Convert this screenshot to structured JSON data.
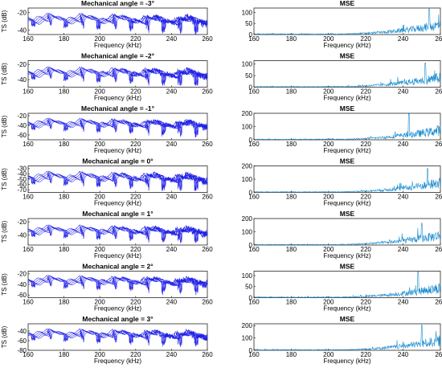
{
  "figure": {
    "left_column_series_color": "#1f1fe6",
    "right_column_series_color": "#1f8fd0",
    "axis_color": "#262626"
  },
  "chart_data": [
    {
      "type": "line",
      "title": "Mechanical angle = -3°",
      "xlabel": "Frequency (kHz)",
      "ylabel": "TS (dB)",
      "xlim": [
        160,
        260
      ],
      "ylim": [
        -45,
        -15
      ],
      "xticks": [
        160,
        180,
        200,
        220,
        240,
        260
      ],
      "yticks": [
        -40,
        -20
      ],
      "grid": false,
      "legend": "none",
      "series_count": 5,
      "series_summary": {
        "baseline": -27,
        "min_approx": -45,
        "max_approx": -18
      }
    },
    {
      "type": "line",
      "title": "MSE",
      "xlabel": "Frequency (kHz)",
      "ylabel": "",
      "xlim": [
        160,
        260
      ],
      "ylim": [
        0,
        120
      ],
      "xticks": [
        160,
        180,
        200,
        220,
        240,
        260
      ],
      "yticks": [
        0,
        50,
        100
      ],
      "grid": false,
      "legend": "none",
      "series_summary": {
        "peak_x": 254,
        "peak_y": 120
      }
    },
    {
      "type": "line",
      "title": "Mechanical angle = -2°",
      "xlabel": "Frequency (kHz)",
      "ylabel": "TS (dB)",
      "xlim": [
        160,
        260
      ],
      "ylim": [
        -50,
        -15
      ],
      "xticks": [
        160,
        180,
        200,
        220,
        240,
        260
      ],
      "yticks": [
        -40,
        -20
      ],
      "grid": false,
      "legend": "none",
      "series_count": 5,
      "series_summary": {
        "baseline": -30,
        "min_approx": -48,
        "max_approx": -18
      }
    },
    {
      "type": "line",
      "title": "MSE",
      "xlabel": "Frequency (kHz)",
      "ylabel": "",
      "xlim": [
        160,
        260
      ],
      "ylim": [
        0,
        115
      ],
      "xticks": [
        160,
        180,
        200,
        220,
        240,
        260
      ],
      "yticks": [
        0,
        50,
        100
      ],
      "grid": false,
      "legend": "none",
      "series_summary": {
        "peak_x": 252,
        "peak_y": 105
      }
    },
    {
      "type": "line",
      "title": "Mechanical angle = -1°",
      "xlabel": "Frequency (kHz)",
      "ylabel": "TS (dB)",
      "xlim": [
        160,
        260
      ],
      "ylim": [
        -70,
        -15
      ],
      "xticks": [
        160,
        180,
        200,
        220,
        240,
        260
      ],
      "yticks": [
        -60,
        -40,
        -20
      ],
      "grid": false,
      "legend": "none",
      "series_count": 5,
      "series_summary": {
        "baseline": -35,
        "min_approx": -65,
        "max_approx": -22
      }
    },
    {
      "type": "line",
      "title": "MSE",
      "xlabel": "Frequency (kHz)",
      "ylabel": "",
      "xlim": [
        160,
        260
      ],
      "ylim": [
        0,
        200
      ],
      "xticks": [
        160,
        180,
        200,
        220,
        240,
        260
      ],
      "yticks": [
        0,
        100,
        200
      ],
      "grid": false,
      "legend": "none",
      "series_summary": {
        "peak_x": 243,
        "peak_y": 195
      }
    },
    {
      "type": "line",
      "title": "Mechanical angle = 0°",
      "xlabel": "Frequency (kHz)",
      "ylabel": "TS (dB)",
      "xlim": [
        160,
        260
      ],
      "ylim": [
        -75,
        -25
      ],
      "xticks": [
        160,
        180,
        200,
        220,
        240,
        260
      ],
      "yticks": [
        -70,
        -60,
        -50,
        -40,
        -30
      ],
      "grid": false,
      "legend": "none",
      "series_count": 5,
      "series_summary": {
        "baseline": -45,
        "min_approx": -72,
        "max_approx": -28
      }
    },
    {
      "type": "line",
      "title": "MSE",
      "xlabel": "Frequency (kHz)",
      "ylabel": "",
      "xlim": [
        160,
        260
      ],
      "ylim": [
        0,
        200
      ],
      "xticks": [
        160,
        180,
        200,
        220,
        240,
        260
      ],
      "yticks": [
        0,
        100,
        200
      ],
      "grid": false,
      "legend": "none",
      "series_summary": {
        "peak_x": 253,
        "peak_y": 180
      }
    },
    {
      "type": "line",
      "title": "Mechanical angle = 1°",
      "xlabel": "Frequency (kHz)",
      "ylabel": "TS (dB)",
      "xlim": [
        160,
        260
      ],
      "ylim": [
        -55,
        -15
      ],
      "xticks": [
        160,
        180,
        200,
        220,
        240,
        260
      ],
      "yticks": [
        -40,
        -20
      ],
      "grid": false,
      "legend": "none",
      "series_count": 5,
      "series_summary": {
        "baseline": -32,
        "min_approx": -52,
        "max_approx": -20
      }
    },
    {
      "type": "line",
      "title": "MSE",
      "xlabel": "Frequency (kHz)",
      "ylabel": "",
      "xlim": [
        160,
        260
      ],
      "ylim": [
        0,
        200
      ],
      "xticks": [
        160,
        180,
        200,
        220,
        240,
        260
      ],
      "yticks": [
        0,
        100,
        200
      ],
      "grid": false,
      "legend": "none",
      "series_summary": {
        "peak_x": 250,
        "peak_y": 165
      }
    },
    {
      "type": "line",
      "title": "Mechanical angle = 2°",
      "xlabel": "Frequency (kHz)",
      "ylabel": "TS (dB)",
      "xlim": [
        160,
        260
      ],
      "ylim": [
        -65,
        -15
      ],
      "xticks": [
        160,
        180,
        200,
        220,
        240,
        260
      ],
      "yticks": [
        -60,
        -40,
        -20
      ],
      "grid": false,
      "legend": "none",
      "series_count": 5,
      "series_summary": {
        "baseline": -32,
        "min_approx": -60,
        "max_approx": -20
      }
    },
    {
      "type": "line",
      "title": "MSE",
      "xlabel": "Frequency (kHz)",
      "ylabel": "",
      "xlim": [
        160,
        260
      ],
      "ylim": [
        0,
        120
      ],
      "xticks": [
        160,
        180,
        200,
        220,
        240,
        260
      ],
      "yticks": [
        0,
        50,
        100
      ],
      "grid": false,
      "legend": "none",
      "series_summary": {
        "peak_x": 248,
        "peak_y": 118
      }
    },
    {
      "type": "line",
      "title": "Mechanical angle = 3°",
      "xlabel": "Frequency (kHz)",
      "ylabel": "TS (dB)",
      "xlim": [
        160,
        260
      ],
      "ylim": [
        -80,
        -25
      ],
      "xticks": [
        160,
        180,
        200,
        220,
        240,
        260
      ],
      "yticks": [
        -80,
        -60,
        -40
      ],
      "grid": false,
      "legend": "none",
      "series_count": 5,
      "series_summary": {
        "baseline": -45,
        "min_approx": -75,
        "max_approx": -32
      }
    },
    {
      "type": "line",
      "title": "MSE",
      "xlabel": "Frequency (kHz)",
      "ylabel": "",
      "xlim": [
        160,
        260
      ],
      "ylim": [
        0,
        215
      ],
      "xticks": [
        160,
        180,
        200,
        220,
        240,
        260
      ],
      "yticks": [
        0,
        100,
        200
      ],
      "grid": false,
      "legend": "none",
      "series_summary": {
        "peak_x": 250,
        "peak_y": 205
      }
    }
  ]
}
